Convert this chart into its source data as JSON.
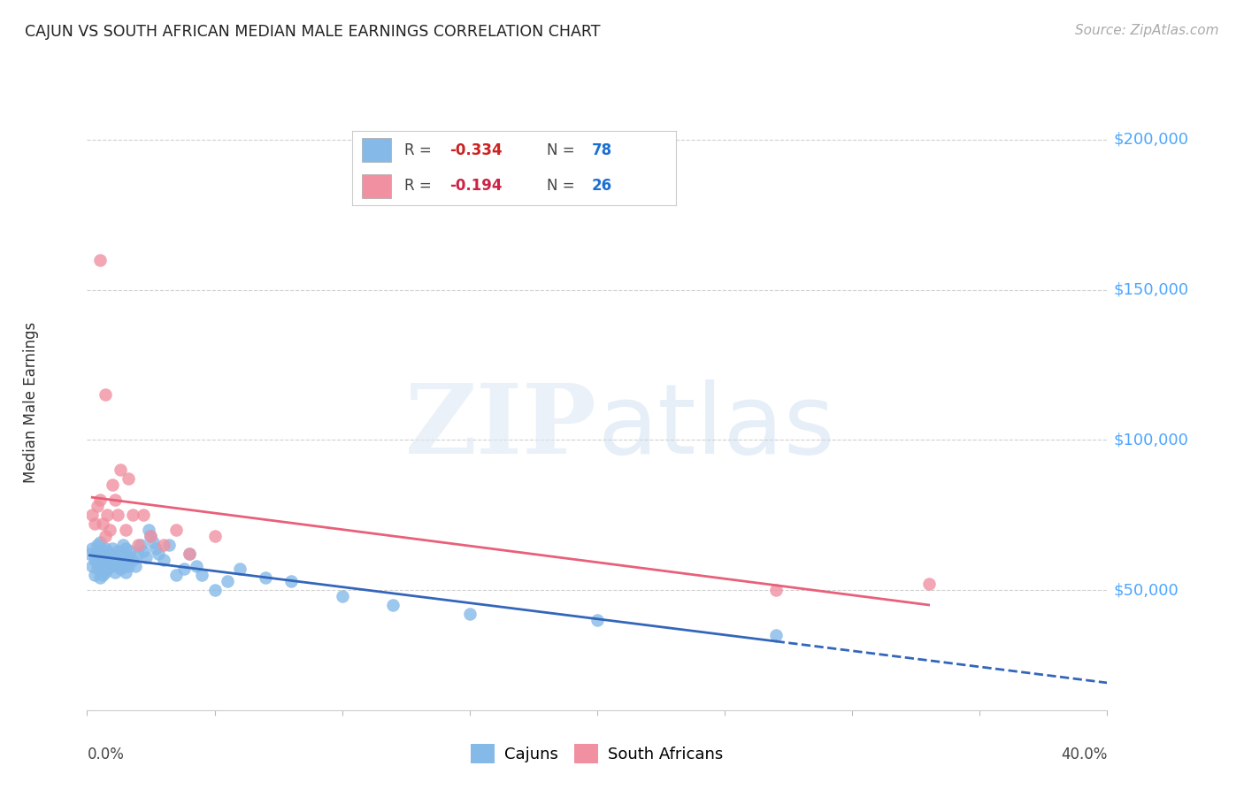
{
  "title": "CAJUN VS SOUTH AFRICAN MEDIAN MALE EARNINGS CORRELATION CHART",
  "source": "Source: ZipAtlas.com",
  "ylabel": "Median Male Earnings",
  "y_tick_labels": [
    "$50,000",
    "$100,000",
    "$150,000",
    "$200,000"
  ],
  "y_tick_values": [
    50000,
    100000,
    150000,
    200000
  ],
  "y_min": 10000,
  "y_max": 215000,
  "x_min": 0.0,
  "x_max": 0.4,
  "cajun_color": "#85b9e8",
  "sa_color": "#f090a0",
  "cajun_line_color": "#3366bb",
  "sa_line_color": "#e8607a",
  "ytick_color": "#4da6ff",
  "grid_color": "#d0d0d0",
  "background_color": "#ffffff",
  "cajun_x": [
    0.001,
    0.002,
    0.002,
    0.003,
    0.003,
    0.004,
    0.004,
    0.004,
    0.004,
    0.005,
    0.005,
    0.005,
    0.005,
    0.005,
    0.006,
    0.006,
    0.006,
    0.006,
    0.006,
    0.007,
    0.007,
    0.007,
    0.007,
    0.007,
    0.008,
    0.008,
    0.008,
    0.008,
    0.009,
    0.009,
    0.009,
    0.01,
    0.01,
    0.01,
    0.011,
    0.011,
    0.011,
    0.012,
    0.012,
    0.013,
    0.013,
    0.013,
    0.014,
    0.014,
    0.015,
    0.015,
    0.015,
    0.016,
    0.016,
    0.017,
    0.018,
    0.019,
    0.02,
    0.021,
    0.022,
    0.023,
    0.024,
    0.025,
    0.026,
    0.027,
    0.028,
    0.03,
    0.032,
    0.035,
    0.038,
    0.04,
    0.043,
    0.045,
    0.05,
    0.055,
    0.06,
    0.07,
    0.08,
    0.1,
    0.12,
    0.15,
    0.2,
    0.27
  ],
  "cajun_y": [
    62000,
    64000,
    58000,
    60000,
    55000,
    63000,
    57000,
    59000,
    65000,
    60000,
    54000,
    58000,
    62000,
    66000,
    60000,
    55000,
    57000,
    59000,
    61000,
    62000,
    56000,
    58000,
    60000,
    64000,
    63000,
    59000,
    57000,
    61000,
    58000,
    62000,
    60000,
    64000,
    60000,
    58000,
    61000,
    59000,
    56000,
    63000,
    58000,
    62000,
    57000,
    60000,
    65000,
    58000,
    64000,
    60000,
    56000,
    61000,
    58000,
    63000,
    60000,
    58000,
    62000,
    65000,
    63000,
    61000,
    70000,
    68000,
    66000,
    64000,
    62000,
    60000,
    65000,
    55000,
    57000,
    62000,
    58000,
    55000,
    50000,
    53000,
    57000,
    54000,
    53000,
    48000,
    45000,
    42000,
    40000,
    35000
  ],
  "sa_x": [
    0.002,
    0.003,
    0.004,
    0.005,
    0.005,
    0.006,
    0.007,
    0.007,
    0.008,
    0.009,
    0.01,
    0.011,
    0.012,
    0.013,
    0.015,
    0.016,
    0.018,
    0.02,
    0.022,
    0.025,
    0.03,
    0.035,
    0.04,
    0.05,
    0.27,
    0.33
  ],
  "sa_y": [
    75000,
    72000,
    78000,
    80000,
    160000,
    72000,
    68000,
    115000,
    75000,
    70000,
    85000,
    80000,
    75000,
    90000,
    70000,
    87000,
    75000,
    65000,
    75000,
    68000,
    65000,
    70000,
    62000,
    68000,
    50000,
    52000
  ]
}
